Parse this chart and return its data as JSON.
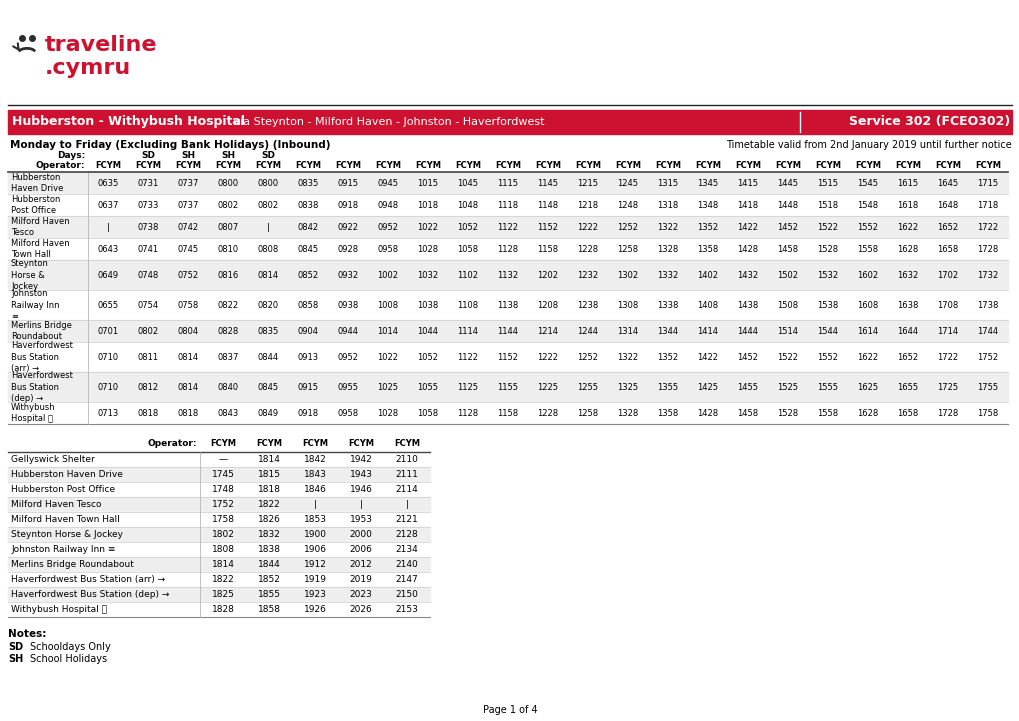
{
  "title_route_bold": "Hubberston - Withybush Hospital",
  "title_via": " via Steynton - Milford Haven - Johnston - Haverfordwest",
  "service_label": "Service 302 (FCEO302)",
  "direction_label": "Monday to Friday (Excluding Bank Holidays) (Inbound)",
  "timetable_valid": "Timetable valid from 2nd January 2019 until further notice",
  "days_row": [
    "",
    "SD",
    "SH",
    "SH",
    "SD",
    "",
    "",
    "",
    "",
    "",
    "",
    "",
    "",
    "",
    "",
    "",
    "",
    "",
    "",
    "",
    "",
    "",
    ""
  ],
  "operator_row": [
    "FCYM",
    "FCYM",
    "FCYM",
    "FCYM",
    "FCYM",
    "FCYM",
    "FCYM",
    "FCYM",
    "FCYM",
    "FCYM",
    "FCYM",
    "FCYM",
    "FCYM",
    "FCYM",
    "FCYM",
    "FCYM",
    "FCYM",
    "FCYM",
    "FCYM",
    "FCYM",
    "FCYM",
    "FCYM",
    "FCYM"
  ],
  "stops": [
    "Hubberston\nHaven Drive",
    "Hubberston\nPost Office",
    "Milford Haven\nTesco",
    "Milford Haven\nTown Hall",
    "Steynton\nHorse &\nJockey",
    "Johnston\nRailway Inn\n≡",
    "Merlins Bridge\nRoundabout",
    "Haverfordwest\nBus Station\n(arr) →",
    "Haverfordwest\nBus Station\n(dep) →",
    "Withybush\nHospital ⓗ"
  ],
  "times_main": [
    [
      "0635",
      "0731",
      "0737",
      "0800",
      "0800",
      "0835",
      "0915",
      "0945",
      "1015",
      "1045",
      "1115",
      "1145",
      "1215",
      "1245",
      "1315",
      "1345",
      "1415",
      "1445",
      "1515",
      "1545",
      "1615",
      "1645",
      "1715"
    ],
    [
      "0637",
      "0733",
      "0737",
      "0802",
      "0802",
      "0838",
      "0918",
      "0948",
      "1018",
      "1048",
      "1118",
      "1148",
      "1218",
      "1248",
      "1318",
      "1348",
      "1418",
      "1448",
      "1518",
      "1548",
      "1618",
      "1648",
      "1718"
    ],
    [
      "|",
      "0738",
      "0742",
      "0807",
      "|",
      "0842",
      "0922",
      "0952",
      "1022",
      "1052",
      "1122",
      "1152",
      "1222",
      "1252",
      "1322",
      "1352",
      "1422",
      "1452",
      "1522",
      "1552",
      "1622",
      "1652",
      "1722"
    ],
    [
      "0643",
      "0741",
      "0745",
      "0810",
      "0808",
      "0845",
      "0928",
      "0958",
      "1028",
      "1058",
      "1128",
      "1158",
      "1228",
      "1258",
      "1328",
      "1358",
      "1428",
      "1458",
      "1528",
      "1558",
      "1628",
      "1658",
      "1728"
    ],
    [
      "0649",
      "0748",
      "0752",
      "0816",
      "0814",
      "0852",
      "0932",
      "1002",
      "1032",
      "1102",
      "1132",
      "1202",
      "1232",
      "1302",
      "1332",
      "1402",
      "1432",
      "1502",
      "1532",
      "1602",
      "1632",
      "1702",
      "1732"
    ],
    [
      "0655",
      "0754",
      "0758",
      "0822",
      "0820",
      "0858",
      "0938",
      "1008",
      "1038",
      "1108",
      "1138",
      "1208",
      "1238",
      "1308",
      "1338",
      "1408",
      "1438",
      "1508",
      "1538",
      "1608",
      "1638",
      "1708",
      "1738"
    ],
    [
      "0701",
      "0802",
      "0804",
      "0828",
      "0835",
      "0904",
      "0944",
      "1014",
      "1044",
      "1114",
      "1144",
      "1214",
      "1244",
      "1314",
      "1344",
      "1414",
      "1444",
      "1514",
      "1544",
      "1614",
      "1644",
      "1714",
      "1744"
    ],
    [
      "0710",
      "0811",
      "0814",
      "0837",
      "0844",
      "0913",
      "0952",
      "1022",
      "1052",
      "1122",
      "1152",
      "1222",
      "1252",
      "1322",
      "1352",
      "1422",
      "1452",
      "1522",
      "1552",
      "1622",
      "1652",
      "1722",
      "1752"
    ],
    [
      "0710",
      "0812",
      "0814",
      "0840",
      "0845",
      "0915",
      "0955",
      "1025",
      "1055",
      "1125",
      "1155",
      "1225",
      "1255",
      "1325",
      "1355",
      "1425",
      "1455",
      "1525",
      "1555",
      "1625",
      "1655",
      "1725",
      "1755"
    ],
    [
      "0713",
      "0818",
      "0818",
      "0843",
      "0849",
      "0918",
      "0958",
      "1028",
      "1058",
      "1128",
      "1158",
      "1228",
      "1258",
      "1328",
      "1358",
      "1428",
      "1458",
      "1528",
      "1558",
      "1628",
      "1658",
      "1728",
      "1758"
    ]
  ],
  "stops_lower": [
    "Gellyswick Shelter",
    "Hubberston Haven Drive",
    "Hubberston Post Office",
    "Milford Haven Tesco",
    "Milford Haven Town Hall",
    "Steynton Horse & Jockey",
    "Johnston Railway Inn ≡",
    "Merlins Bridge Roundabout",
    "Haverfordwest Bus Station (arr) →",
    "Haverfordwest Bus Station (dep) →",
    "Withybush Hospital ⓗ"
  ],
  "times_lower_header": [
    "FCYM",
    "FCYM",
    "FCYM",
    "FCYM",
    "FCYM"
  ],
  "times_lower": [
    [
      "—",
      "1814",
      "1842",
      "1942",
      "2110"
    ],
    [
      "1745",
      "1815",
      "1843",
      "1943",
      "2111"
    ],
    [
      "1748",
      "1818",
      "1846",
      "1946",
      "2114"
    ],
    [
      "1752",
      "1822",
      "|",
      "|",
      "|"
    ],
    [
      "1758",
      "1826",
      "1853",
      "1953",
      "2121"
    ],
    [
      "1802",
      "1832",
      "1900",
      "2000",
      "2128"
    ],
    [
      "1808",
      "1838",
      "1906",
      "2006",
      "2134"
    ],
    [
      "1814",
      "1844",
      "1912",
      "2012",
      "2140"
    ],
    [
      "1822",
      "1852",
      "1919",
      "2019",
      "2147"
    ],
    [
      "1825",
      "1855",
      "1923",
      "2023",
      "2150"
    ],
    [
      "1828",
      "1858",
      "1926",
      "2026",
      "2153"
    ]
  ],
  "notes_title": "Notes:",
  "notes": [
    [
      "SD",
      "Schooldays Only"
    ],
    [
      "SH",
      "School Holidays"
    ]
  ],
  "page_label": "Page 1 of 4",
  "header_red": "#cc1230",
  "row_alt_gray": "#eeeeee",
  "row_alt_white": "#ffffff"
}
